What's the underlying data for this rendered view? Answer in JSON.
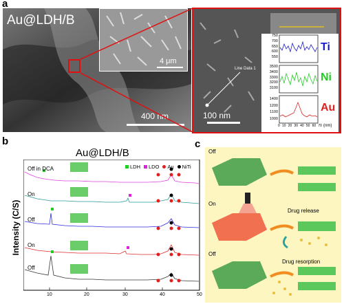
{
  "panel_a": {
    "letter": "a",
    "title": "Au@LDH/B",
    "inset_scale": "4 μm",
    "main_scale": "400 nm",
    "zoom_scale": "100 nm",
    "line_label": "Line Data 1",
    "eds": {
      "x_ticks": [
        "0",
        "10",
        "20",
        "30",
        "40",
        "50",
        "60",
        "70"
      ],
      "x_unit": "(nm)",
      "ti": {
        "label": "Ti",
        "ticks": [
          "750",
          "700",
          "650",
          "600",
          "550"
        ],
        "color": "#1a1acc"
      },
      "ni": {
        "label": "Ni",
        "ticks": [
          "3500",
          "3400",
          "3300",
          "3200",
          "3100"
        ],
        "color": "#22cc22"
      },
      "au": {
        "label": "Au",
        "ticks": [
          "1400",
          "1200",
          "1100",
          "1000"
        ],
        "color": "#dd2222"
      }
    }
  },
  "panel_b": {
    "letter": "b",
    "title": "Au@LDH/B",
    "ylabel": "Intensity (C/S)",
    "x_ticks": [
      "10",
      "20",
      "30",
      "40",
      "50"
    ],
    "legend": [
      {
        "label": "LDH",
        "color": "#22cc22"
      },
      {
        "label": "LDO",
        "color": "#e020e0"
      },
      {
        "label": "Au",
        "color": "#e02020"
      },
      {
        "label": "NiTi",
        "color": "#000000"
      }
    ],
    "curve_labels": [
      "Off in DCA",
      "On",
      "Off",
      "On",
      "Off"
    ],
    "curve_colors": [
      "#e040e0",
      "#2a9a9a",
      "#2a2ae0",
      "#e02a2a",
      "#333333"
    ]
  },
  "panel_c": {
    "letter": "c",
    "rows": [
      {
        "state": "Off",
        "caption": ""
      },
      {
        "state": "On",
        "caption": "Drug release"
      },
      {
        "state": "Off",
        "caption": "Drug resorption"
      }
    ]
  }
}
